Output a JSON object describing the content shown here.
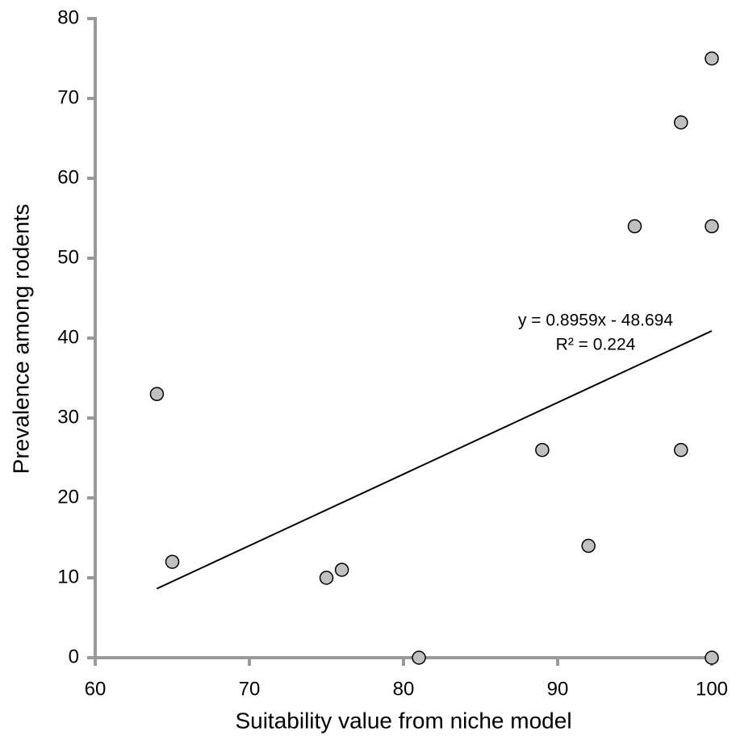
{
  "chart_data": {
    "type": "scatter",
    "x_label": "Suitability value from niche model",
    "y_label": "Prevalence among rodents",
    "x": [
      64,
      65,
      75,
      76,
      81,
      89,
      92,
      95,
      98,
      98,
      100,
      100,
      100
    ],
    "values": [
      33,
      12,
      10,
      11,
      0,
      26,
      14,
      54,
      67,
      26,
      75,
      54,
      0
    ],
    "color": "#c0c0c0",
    "xlim": [
      60,
      100
    ],
    "xticks": [
      60,
      70,
      80,
      90,
      100
    ],
    "ylim": [
      0,
      80
    ],
    "yticks": [
      0,
      10,
      20,
      30,
      40,
      50,
      60,
      70,
      80
    ],
    "trendline": {
      "x": [
        64,
        100
      ],
      "y": [
        8.64,
        40.9
      ]
    },
    "annotations": [
      "y = 0.8959x  - 48.694",
      "R² = 0.224"
    ]
  }
}
